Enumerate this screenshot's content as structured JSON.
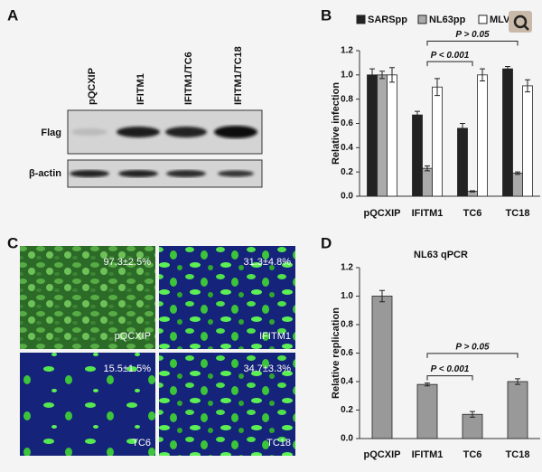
{
  "blot": {
    "panel": "A",
    "lanes": [
      "pQCXIP",
      "IFITM1",
      "IFITM1/TC6",
      "IFITM1/TC18"
    ],
    "rows": [
      "Flag",
      "β-actin"
    ]
  },
  "microscopy": {
    "panel": "C",
    "images": [
      {
        "percent": "97.3±2.5%",
        "label": "pQCXIP"
      },
      {
        "percent": "31.3±4.8%",
        "label": "IFITM1"
      },
      {
        "percent": "15.5±1.5%",
        "label": "TC6"
      },
      {
        "percent": "34.7±3.3%",
        "label": "TC18"
      }
    ]
  },
  "chart_data": [
    {
      "type": "bar",
      "panel": "B",
      "ylabel": "Relative infection",
      "categories": [
        "pQCXIP",
        "IFITM1",
        "TC6",
        "TC18"
      ],
      "series": [
        {
          "name": "SARSpp",
          "color": "#222222",
          "values": [
            1.0,
            0.67,
            0.56,
            1.05
          ],
          "errors": [
            0.05,
            0.03,
            0.04,
            0.02
          ]
        },
        {
          "name": "NL63pp",
          "color": "#aaaaaa",
          "values": [
            1.0,
            0.23,
            0.04,
            0.19
          ],
          "errors": [
            0.03,
            0.02,
            0.005,
            0.01
          ]
        },
        {
          "name": "MLV",
          "color": "#ffffff",
          "values": [
            1.0,
            0.9,
            1.0,
            0.91
          ],
          "errors": [
            0.06,
            0.07,
            0.05,
            0.05
          ]
        }
      ],
      "ylim": [
        0,
        1.2
      ],
      "yticks": [
        {
          "value": 0,
          "label": "0.0"
        },
        0.2,
        0.4,
        0.6,
        0.8,
        {
          "value": 1,
          "label": "1.0"
        },
        1.2
      ],
      "annotations": [
        {
          "text": "P < 0.001",
          "between": [
            1,
            2
          ]
        },
        {
          "text": "P > 0.05",
          "between": [
            1,
            3
          ]
        }
      ]
    },
    {
      "type": "bar",
      "panel": "D",
      "title": "NL63 qPCR",
      "ylabel": "Relative replication",
      "categories": [
        "pQCXIP",
        "IFITM1",
        "TC6",
        "TC18"
      ],
      "values": [
        1.0,
        0.38,
        0.17,
        0.4
      ],
      "errors": [
        0.04,
        0.01,
        0.02,
        0.02
      ],
      "color": "#999999",
      "ylim": [
        0,
        1.2
      ],
      "yticks": [
        {
          "value": 0,
          "label": "0.0"
        },
        0.2,
        0.4,
        0.6,
        0.8,
        {
          "value": 1,
          "label": "1.0"
        },
        1.2
      ],
      "annotations": [
        {
          "text": "P < 0.001",
          "between": [
            1,
            2
          ]
        },
        {
          "text": "P > 0.05",
          "between": [
            1,
            3
          ]
        }
      ]
    }
  ]
}
